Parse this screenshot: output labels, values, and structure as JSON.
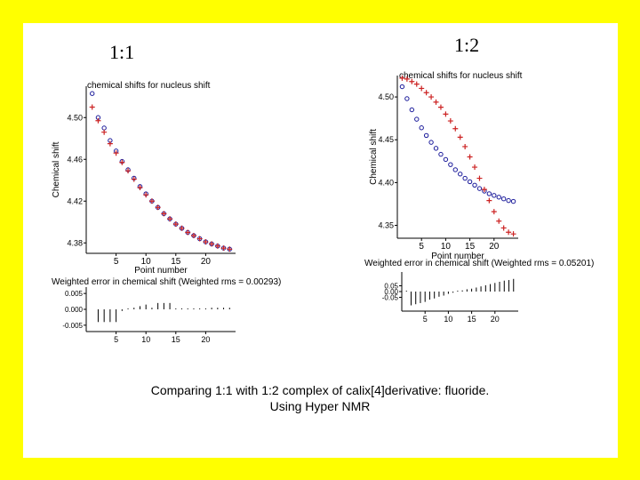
{
  "slide": {
    "label_left": "1:1",
    "label_right": "1:2",
    "caption_line1": "Comparing 1:1 with 1:2 complex of calix[4]derivative: fluoride.",
    "caption_line2": "Using Hyper NMR"
  },
  "colors": {
    "background": "#ffff00",
    "panel": "#ffffff",
    "calc": "#1a1a9a",
    "obs": "#cc2222",
    "axis": "#000000"
  },
  "chart_data": [
    {
      "id": "left-main",
      "type": "scatter",
      "title": "chemical shifts for nucleus shift",
      "xlabel": "Point number",
      "ylabel": "Chemical shift",
      "xlim": [
        0,
        25
      ],
      "ylim": [
        4.37,
        4.53
      ],
      "xticks": [
        5,
        10,
        15,
        20
      ],
      "yticks": [
        4.38,
        4.42,
        4.46,
        4.5
      ],
      "ytick_labels": [
        "4.38",
        "4.42",
        "4.46",
        "4.50"
      ],
      "series": [
        {
          "marker": "circle",
          "x": [
            1,
            2,
            3,
            4,
            5,
            6,
            7,
            8,
            9,
            10,
            11,
            12,
            13,
            14,
            15,
            16,
            17,
            18,
            19,
            20,
            21,
            22,
            23,
            24
          ],
          "y": [
            4.523,
            4.5,
            4.49,
            4.478,
            4.468,
            4.458,
            4.45,
            4.442,
            4.434,
            4.427,
            4.42,
            4.414,
            4.408,
            4.403,
            4.398,
            4.394,
            4.39,
            4.387,
            4.384,
            4.381,
            4.379,
            4.377,
            4.375,
            4.374
          ]
        },
        {
          "marker": "plus",
          "x": [
            1,
            2,
            3,
            4,
            5,
            6,
            7,
            8,
            9,
            10,
            11,
            12,
            13,
            14,
            15,
            16,
            17,
            18,
            19,
            20,
            21,
            22,
            23,
            24
          ],
          "y": [
            4.51,
            4.497,
            4.486,
            4.475,
            4.466,
            4.457,
            4.449,
            4.441,
            4.433,
            4.426,
            4.42,
            4.414,
            4.408,
            4.403,
            4.398,
            4.394,
            4.39,
            4.387,
            4.384,
            4.381,
            4.379,
            4.377,
            4.375,
            4.374
          ]
        }
      ]
    },
    {
      "id": "left-residual",
      "type": "bar",
      "title": "Weighted error in chemical shift (Weighted rms = 0.00293)",
      "xlim": [
        0,
        25
      ],
      "ylim": [
        -0.007,
        0.007
      ],
      "xticks": [
        5,
        10,
        15,
        20
      ],
      "yticks": [
        -0.005,
        0.0,
        0.005
      ],
      "ytick_labels": [
        "-0.005",
        "0.000",
        "0.005"
      ],
      "x": [
        2,
        3,
        4,
        5,
        6,
        7,
        8,
        9,
        10,
        11,
        12,
        13,
        14,
        15,
        16,
        17,
        18,
        19,
        20,
        21,
        22,
        23,
        24
      ],
      "values": [
        -0.004,
        -0.004,
        -0.004,
        -0.004,
        -0.0005,
        0.0,
        0.0005,
        0.001,
        0.0015,
        0.0005,
        0.002,
        0.002,
        0.002,
        0.0,
        0.0,
        0.0,
        0.0,
        0.0,
        0.0,
        0.0005,
        0.0005,
        0.0005,
        0.0005
      ]
    },
    {
      "id": "right-main",
      "type": "scatter",
      "title": "chemical shifts for nucleus shift",
      "xlabel": "Point number",
      "ylabel": "Chemical shift",
      "xlim": [
        0,
        25
      ],
      "ylim": [
        4.335,
        4.525
      ],
      "xticks": [
        5,
        10,
        15,
        20
      ],
      "yticks": [
        4.35,
        4.4,
        4.45,
        4.5
      ],
      "ytick_labels": [
        "4.35",
        "4.40",
        "4.45",
        "4.50"
      ],
      "series": [
        {
          "marker": "circle",
          "x": [
            1,
            2,
            3,
            4,
            5,
            6,
            7,
            8,
            9,
            10,
            11,
            12,
            13,
            14,
            15,
            16,
            17,
            18,
            19,
            20,
            21,
            22,
            23,
            24
          ],
          "y": [
            4.512,
            4.498,
            4.485,
            4.474,
            4.464,
            4.455,
            4.447,
            4.44,
            4.433,
            4.427,
            4.421,
            4.415,
            4.41,
            4.405,
            4.401,
            4.397,
            4.393,
            4.39,
            4.387,
            4.385,
            4.383,
            4.381,
            4.379,
            4.378
          ]
        },
        {
          "marker": "plus",
          "x": [
            1,
            2,
            3,
            4,
            5,
            6,
            7,
            8,
            9,
            10,
            11,
            12,
            13,
            14,
            15,
            16,
            17,
            18,
            19,
            20,
            21,
            22,
            23,
            24
          ],
          "y": [
            4.522,
            4.521,
            4.518,
            4.515,
            4.51,
            4.505,
            4.5,
            4.494,
            4.488,
            4.48,
            4.472,
            4.463,
            4.453,
            4.442,
            4.43,
            4.418,
            4.405,
            4.392,
            4.379,
            4.366,
            4.355,
            4.347,
            4.342,
            4.34
          ]
        }
      ]
    },
    {
      "id": "right-residual",
      "type": "bar",
      "title": "Weighted error in chemical shift (Weighted rms = 0.05201)",
      "xlim": [
        0,
        25
      ],
      "ylim": [
        -0.17,
        0.17
      ],
      "xticks": [
        5,
        10,
        15,
        20
      ],
      "yticks": [
        -0.05,
        0.0,
        0.05
      ],
      "ytick_labels": [
        "-0.05",
        "0.00",
        "0.05"
      ],
      "x": [
        1,
        2,
        3,
        4,
        5,
        6,
        7,
        8,
        9,
        10,
        11,
        12,
        13,
        14,
        15,
        16,
        17,
        18,
        19,
        20,
        21,
        22,
        23,
        24
      ],
      "values": [
        0.0,
        -0.12,
        -0.11,
        -0.1,
        -0.09,
        -0.07,
        -0.06,
        -0.045,
        -0.035,
        -0.02,
        -0.01,
        0.0,
        0.01,
        0.02,
        0.025,
        0.035,
        0.045,
        0.055,
        0.065,
        0.075,
        0.085,
        0.095,
        0.1,
        0.11
      ]
    }
  ]
}
